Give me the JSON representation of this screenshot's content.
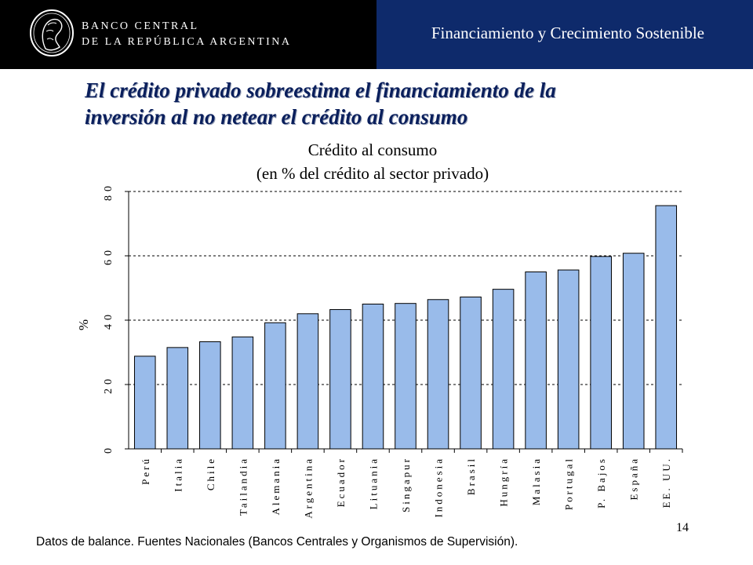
{
  "header": {
    "bank_name_line1": "BANCO CENTRAL",
    "bank_name_line2": "DE LA REPÚBLICA ARGENTINA",
    "section": "Financiamiento y Crecimiento Sostenible",
    "logo_icon": "banco-central-seal-logo"
  },
  "slide": {
    "title_line1": "El crédito privado sobreestima el financiamiento de la",
    "title_line2": "inversión al no netear el crédito al consumo",
    "footnote": "Datos de balance. Fuentes Nacionales (Bancos Centrales y Organismos de Supervisión).",
    "page_number": "14"
  },
  "chart_data": {
    "type": "bar",
    "title": "Crédito al consumo",
    "subtitle": "(en % del crédito al sector privado)",
    "ylabel": "%",
    "xlabel": "",
    "ylim": [
      0,
      80
    ],
    "yticks": [
      0,
      20,
      40,
      60,
      80
    ],
    "grid": true,
    "categories": [
      "Perú",
      "Italia",
      "Chile",
      "Tailandia",
      "Alemania",
      "Argentina",
      "Ecuador",
      "Lituania",
      "Singapur",
      "Indonesia",
      "Brasil",
      "Hungría",
      "Malasia",
      "Portugal",
      "P. Bajos",
      "España",
      "EE. UU."
    ],
    "values": [
      28.8,
      31.5,
      33.3,
      34.8,
      39.2,
      42.0,
      43.3,
      45.0,
      45.2,
      46.4,
      47.2,
      49.6,
      55.0,
      55.6,
      59.8,
      60.8,
      75.6
    ],
    "colors": {
      "bar_fill": "#99bbea",
      "bar_stroke": "#000000",
      "grid": "#000000",
      "text": "#000000"
    }
  }
}
